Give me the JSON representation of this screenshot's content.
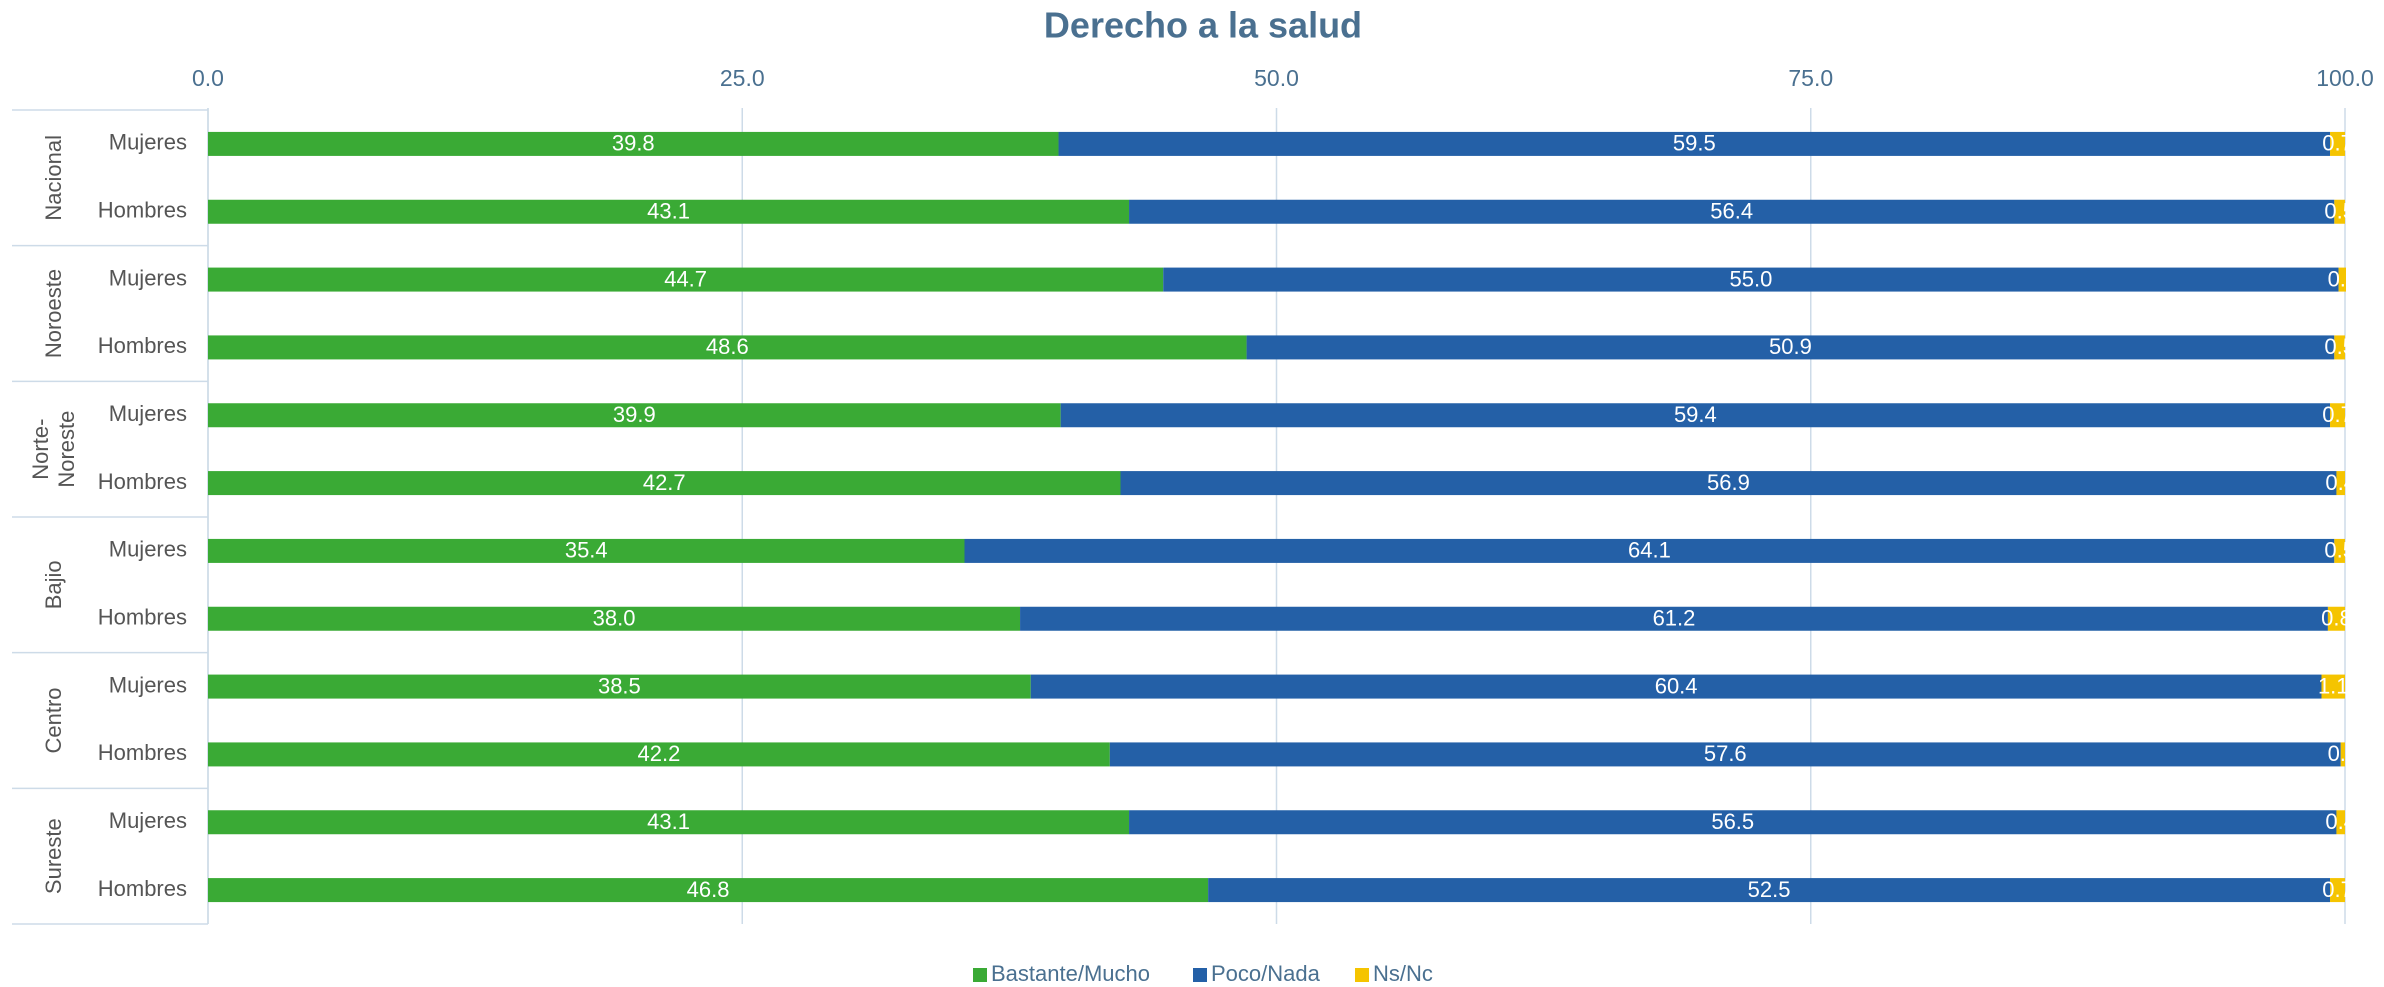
{
  "chart_data": {
    "type": "stacked_barh",
    "title": "Derecho a la salud",
    "groups": [
      "Nacional",
      "Noroeste",
      "Norte-Noreste",
      "Bajio",
      "Centro",
      "Sureste"
    ],
    "categories": [
      "Mujeres",
      "Hombres",
      "Mujeres",
      "Hombres",
      "Mujeres",
      "Hombres",
      "Mujeres",
      "Hombres",
      "Mujeres",
      "Hombres",
      "Mujeres",
      "Hombres"
    ],
    "series": [
      {
        "name": "Bastante/Mucho",
        "color": "#3aaa35",
        "values": [
          39.8,
          43.1,
          44.7,
          48.6,
          39.9,
          42.7,
          35.4,
          38.0,
          38.5,
          42.2,
          43.1,
          46.8
        ],
        "value_labels": [
          "39.8",
          "43.1",
          "44.7",
          "48.6",
          "39.9",
          "42.7",
          "35.4",
          "38.0",
          "38.5",
          "42.2",
          "43.1",
          "46.8"
        ]
      },
      {
        "name": "Poco/Nada",
        "color": "#2460a7",
        "values": [
          59.5,
          56.4,
          55.0,
          50.9,
          59.4,
          56.9,
          64.1,
          61.2,
          60.4,
          57.6,
          56.5,
          52.5
        ],
        "value_labels": [
          "59.5",
          "56.4",
          "55.0",
          "50.9",
          "59.4",
          "56.9",
          "64.1",
          "61.2",
          "60.4",
          "57.6",
          "56.5",
          "52.5"
        ]
      },
      {
        "name": "Ns/Nc",
        "color": "#f5c400",
        "values": [
          0.7,
          0.5,
          0.4,
          0.5,
          0.7,
          0.4,
          0.5,
          0.8,
          1.1,
          0.2,
          0.4,
          0.7
        ],
        "value_labels": [
          "0.7",
          "0.5",
          "0.4",
          "0.5",
          "0.7",
          "0.4",
          "0.5",
          "0.8",
          "1.1",
          "0.2",
          "0.4",
          "0.7"
        ]
      }
    ],
    "xlim": [
      0,
      100
    ],
    "xticks": [
      {
        "value": 0,
        "label": "0.0"
      },
      {
        "value": 25,
        "label": "25.0"
      },
      {
        "value": 50,
        "label": "50.0"
      },
      {
        "value": 75,
        "label": "75.0"
      },
      {
        "value": 100,
        "label": "100.0"
      }
    ],
    "grid": true,
    "legend": "bottom"
  }
}
